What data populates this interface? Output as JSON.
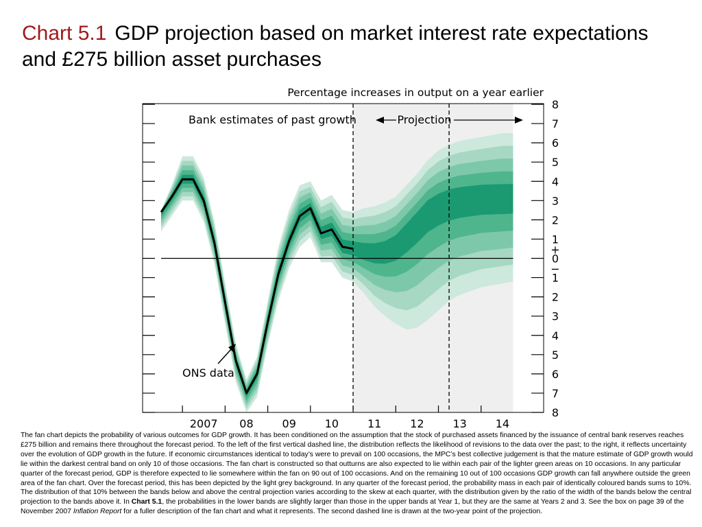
{
  "title": {
    "number": "Chart 5.1",
    "text": "GDP projection based on market interest rate expectations and £275 billion asset purchases"
  },
  "chart_data": {
    "type": "area",
    "subtitle": "Percentage increases in output on a year earlier",
    "annotations": {
      "past": "Bank estimates of past growth",
      "projection": "Projection",
      "ons": "ONS data"
    },
    "x_labels": [
      "2007",
      "08",
      "09",
      "10",
      "11",
      "12",
      "13",
      "14"
    ],
    "x_range": [
      2006.5,
      2015.0
    ],
    "y_range": [
      -8,
      8
    ],
    "y_ticks": [
      8,
      7,
      6,
      5,
      4,
      3,
      2,
      1,
      0,
      1,
      2,
      3,
      4,
      5,
      6,
      7,
      8
    ],
    "y_sign_labels": [
      "+",
      "−"
    ],
    "dashed_lines_x": [
      2011.0,
      2013.25
    ],
    "projection_background_x": [
      2011.0,
      2014.75
    ],
    "line_start_x": 2006.5,
    "central_projection": {
      "name": "ONS data",
      "x": [
        2006.5,
        2006.75,
        2007.0,
        2007.25,
        2007.5,
        2007.75,
        2008.0,
        2008.25,
        2008.5,
        2008.75,
        2009.0,
        2009.25,
        2009.5,
        2009.75,
        2010.0,
        2010.25,
        2010.5,
        2010.75,
        2011.0
      ],
      "y": [
        2.4,
        3.2,
        4.1,
        4.1,
        3.0,
        0.8,
        -2.3,
        -5.3,
        -7.0,
        -6.0,
        -3.3,
        -0.8,
        0.9,
        2.2,
        2.6,
        1.3,
        1.5,
        0.6,
        0.5
      ]
    },
    "fan": {
      "x": [
        2006.5,
        2006.75,
        2007.0,
        2007.25,
        2007.5,
        2007.75,
        2008.0,
        2008.25,
        2008.5,
        2008.75,
        2009.0,
        2009.25,
        2009.5,
        2009.75,
        2010.0,
        2010.25,
        2010.5,
        2010.75,
        2011.0,
        2011.25,
        2011.5,
        2011.75,
        2012.0,
        2012.25,
        2012.5,
        2012.75,
        2013.0,
        2013.25,
        2013.5,
        2013.75,
        2014.0,
        2014.25,
        2014.5,
        2014.75
      ],
      "central": [
        2.4,
        3.2,
        4.1,
        4.1,
        3.0,
        0.8,
        -2.3,
        -5.3,
        -7.0,
        -6.0,
        -3.3,
        -0.8,
        0.9,
        2.2,
        2.6,
        1.3,
        1.5,
        0.6,
        0.5,
        0.35,
        0.3,
        0.4,
        0.7,
        1.3,
        1.9,
        2.5,
        2.8,
        3.0,
        3.1,
        3.15,
        3.2,
        3.2,
        3.2,
        3.2
      ],
      "outer_upper": [
        2.5,
        3.8,
        5.3,
        5.3,
        4.2,
        1.9,
        -1.3,
        -4.4,
        -6.3,
        -5.1,
        -2.2,
        0.6,
        2.5,
        3.8,
        4.0,
        3.0,
        3.3,
        2.5,
        2.4,
        2.6,
        2.7,
        2.9,
        3.2,
        3.8,
        4.4,
        5.1,
        5.6,
        5.9,
        6.1,
        6.2,
        6.3,
        6.4,
        6.5,
        6.5
      ],
      "outer_lower": [
        1.4,
        2.2,
        3.0,
        3.0,
        1.9,
        -0.3,
        -3.4,
        -6.4,
        -8.0,
        -7.2,
        -4.5,
        -2.2,
        -0.5,
        0.6,
        1.1,
        -0.2,
        -0.2,
        -1.0,
        -1.2,
        -1.8,
        -2.5,
        -3.0,
        -3.4,
        -3.7,
        -3.6,
        -3.2,
        -2.7,
        -2.2,
        -1.9,
        -1.7,
        -1.5,
        -1.4,
        -1.3,
        -1.2
      ]
    },
    "colors": {
      "fan_bands": [
        "#cde8dd",
        "#a6d8c3",
        "#7dc8aa",
        "#4fb58d",
        "#1b9a72"
      ],
      "line": "#000000",
      "projection_bg": "#efefef",
      "title_number": "#a01a1a"
    }
  },
  "caption": {
    "p1": "The fan chart depicts the probability of various outcomes for GDP growth.  It has been conditioned on the assumption that the stock of purchased assets financed by the issuance of central bank reserves reaches £275 billion and remains there throughout the forecast period.  To the left of the first vertical dashed line, the distribution reflects the likelihood of revisions to the data over the past;  to the right, it reflects uncertainty over the evolution of GDP growth in the future.  If economic circumstances identical to today’s were to prevail on 100 occasions, the MPC’s best collective judgement is that the mature estimate of GDP growth would lie within the darkest central band on only 10 of those occasions.  The fan chart is constructed so that outturns are also expected to lie within each pair of the lighter green areas on 10 occasions.  In any particular quarter of the forecast period, GDP is therefore expected to lie somewhere within the fan on 90 out of 100 occasions.  And on the remaining 10 out of 100 occasions GDP growth can fall anywhere outside the green area of the fan chart.  Over the forecast period, this has been depicted by the light grey background.  In any quarter of the forecast period, the probability mass in each pair of identically coloured bands sums to 10%.  The distribution of that 10% between the bands below and above the central projection varies according to the skew at each quarter, with the distribution given by the ratio of the width of the bands below the central projection to the bands above it.  In ",
    "chart_ref": "Chart 5.1",
    "p2": ", the probabilities in the lower bands are slightly larger than those in the upper bands at Year 1, but they are the same at Years 2 and 3.  See the box on page 39 of the November 2007 ",
    "report": "Inflation Report",
    "p3": " for a fuller description of the fan chart and what it represents.  The second dashed line is drawn at the two-year point of the projection."
  }
}
